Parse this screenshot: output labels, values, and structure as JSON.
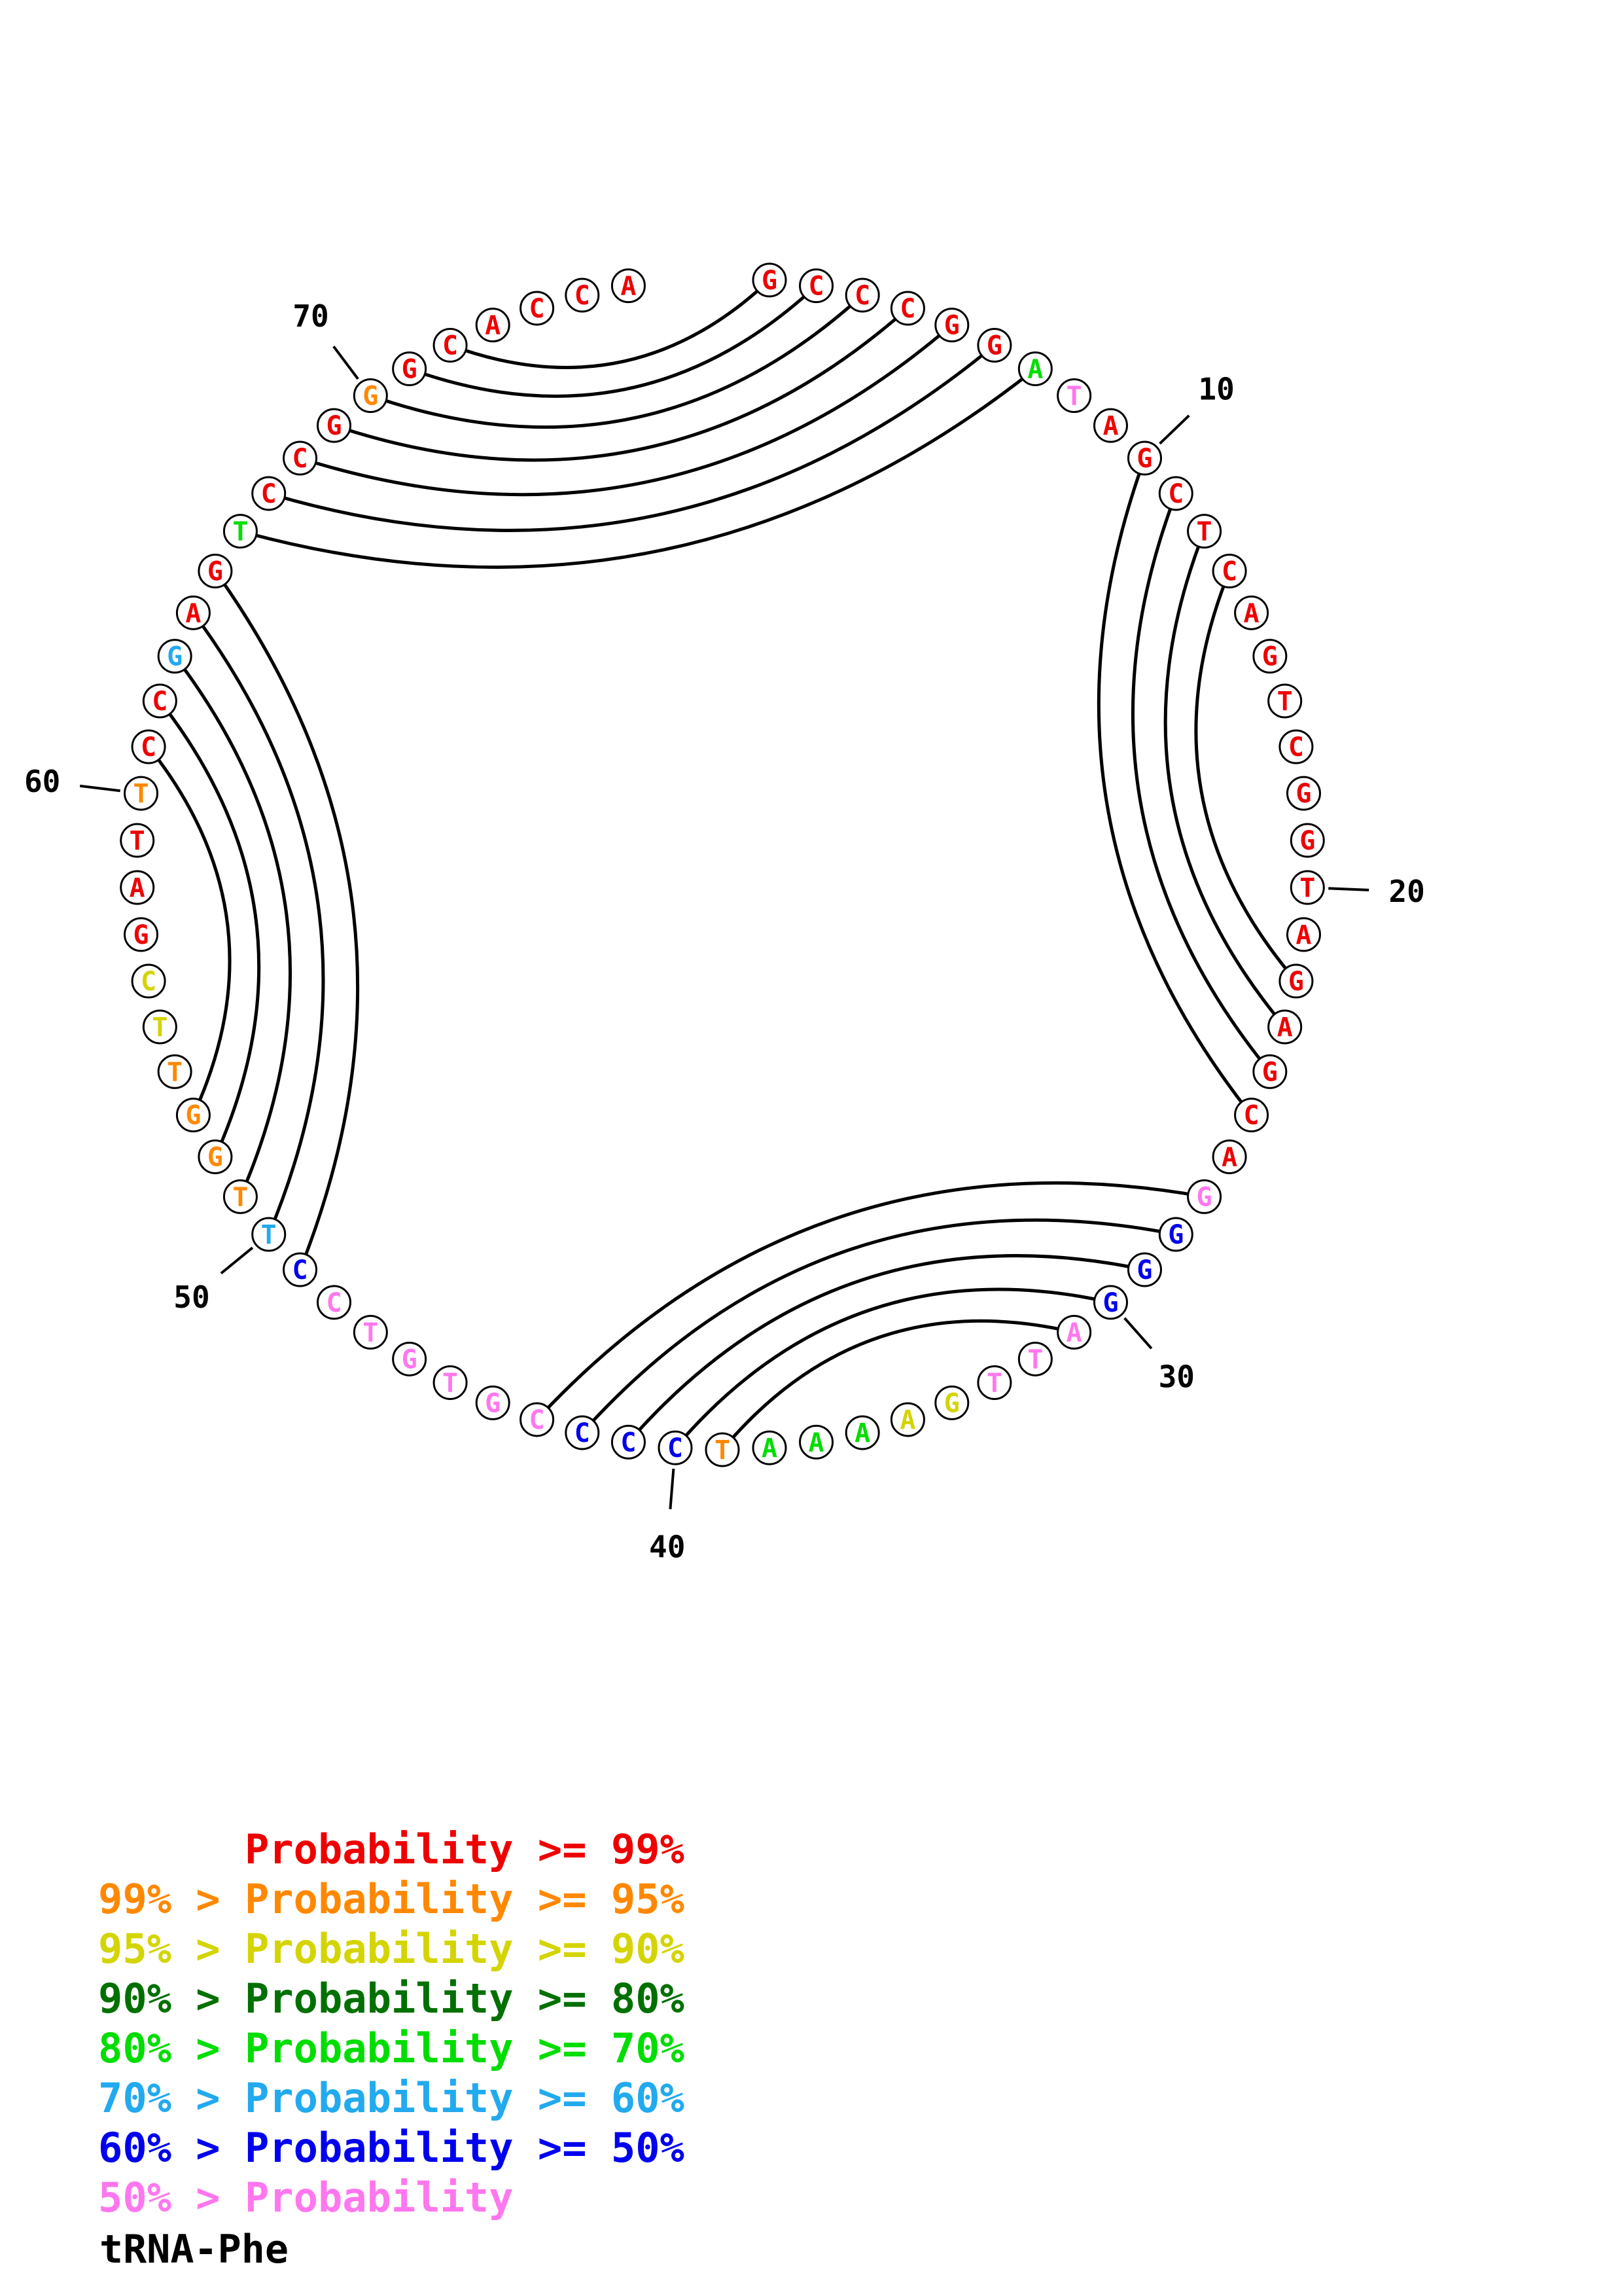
{
  "title": "tRNA-Phe",
  "chart_data": {
    "type": "circle-plot",
    "description": "Circular base-pairing probability plot of tRNA-Phe; nucleotides on a circle, black arcs join paired bases, letters colored by probability class",
    "sequence": "GCCCGGATAGCTCAGTCGGTAGAGCAGGGGATTGAAAATCCCCGTGTCCTTGGTTCGATTCCGAGTCCGGGCACCA",
    "length": 76,
    "position_labels": [
      10,
      20,
      30,
      40,
      50,
      60,
      70
    ],
    "pairs": [
      [
        1,
        72
      ],
      [
        2,
        71
      ],
      [
        3,
        70
      ],
      [
        4,
        69
      ],
      [
        5,
        68
      ],
      [
        6,
        67
      ],
      [
        7,
        66
      ],
      [
        10,
        25
      ],
      [
        11,
        24
      ],
      [
        12,
        23
      ],
      [
        13,
        22
      ],
      [
        27,
        43
      ],
      [
        28,
        42
      ],
      [
        29,
        41
      ],
      [
        30,
        40
      ],
      [
        31,
        39
      ],
      [
        49,
        65
      ],
      [
        50,
        64
      ],
      [
        51,
        63
      ],
      [
        52,
        62
      ],
      [
        53,
        61
      ]
    ],
    "nucleotide_colors": [
      "p99",
      "p99",
      "p99",
      "p99",
      "p99",
      "p99",
      "p70",
      "lt50",
      "p99",
      "p99",
      "p99",
      "p99",
      "p99",
      "p99",
      "p99",
      "p99",
      "p99",
      "p99",
      "p99",
      "p99",
      "p99",
      "p99",
      "p99",
      "p99",
      "p99",
      "p99",
      "lt50",
      "p50",
      "p50",
      "p50",
      "lt50",
      "lt50",
      "lt50",
      "p90",
      "p90",
      "p70",
      "p70",
      "p70",
      "p95",
      "p50",
      "p50",
      "p50",
      "lt50",
      "lt50",
      "lt50",
      "lt50",
      "lt50",
      "lt50",
      "p50",
      "p60",
      "p95",
      "p95",
      "p95",
      "p95",
      "p90",
      "p90",
      "p99",
      "p99",
      "p99",
      "p95",
      "p99",
      "p99",
      "p60",
      "p99",
      "p99",
      "p70",
      "p99",
      "p99",
      "p99",
      "p95",
      "p99",
      "p99",
      "p99",
      "p99",
      "p99",
      "p99"
    ],
    "color_classes": {
      "p99": "#ee0000",
      "p95": "#ff8800",
      "p90": "#d4d400",
      "p80": "#007000",
      "p70": "#00dd00",
      "p60": "#22aaee",
      "p50": "#0000ee",
      "lt50": "#ff77ee"
    }
  },
  "legend": {
    "rows": [
      {
        "label": "      Probability >= 99%",
        "color_key": "p99"
      },
      {
        "label": "99% > Probability >= 95%",
        "color_key": "p95"
      },
      {
        "label": "95% > Probability >= 90%",
        "color_key": "p90"
      },
      {
        "label": "90% > Probability >= 80%",
        "color_key": "p80"
      },
      {
        "label": "80% > Probability >= 70%",
        "color_key": "p70"
      },
      {
        "label": "70% > Probability >= 60%",
        "color_key": "p60"
      },
      {
        "label": "60% > Probability >= 50%",
        "color_key": "p50"
      },
      {
        "label": "50% > Probability",
        "color_key": "lt50"
      }
    ]
  }
}
